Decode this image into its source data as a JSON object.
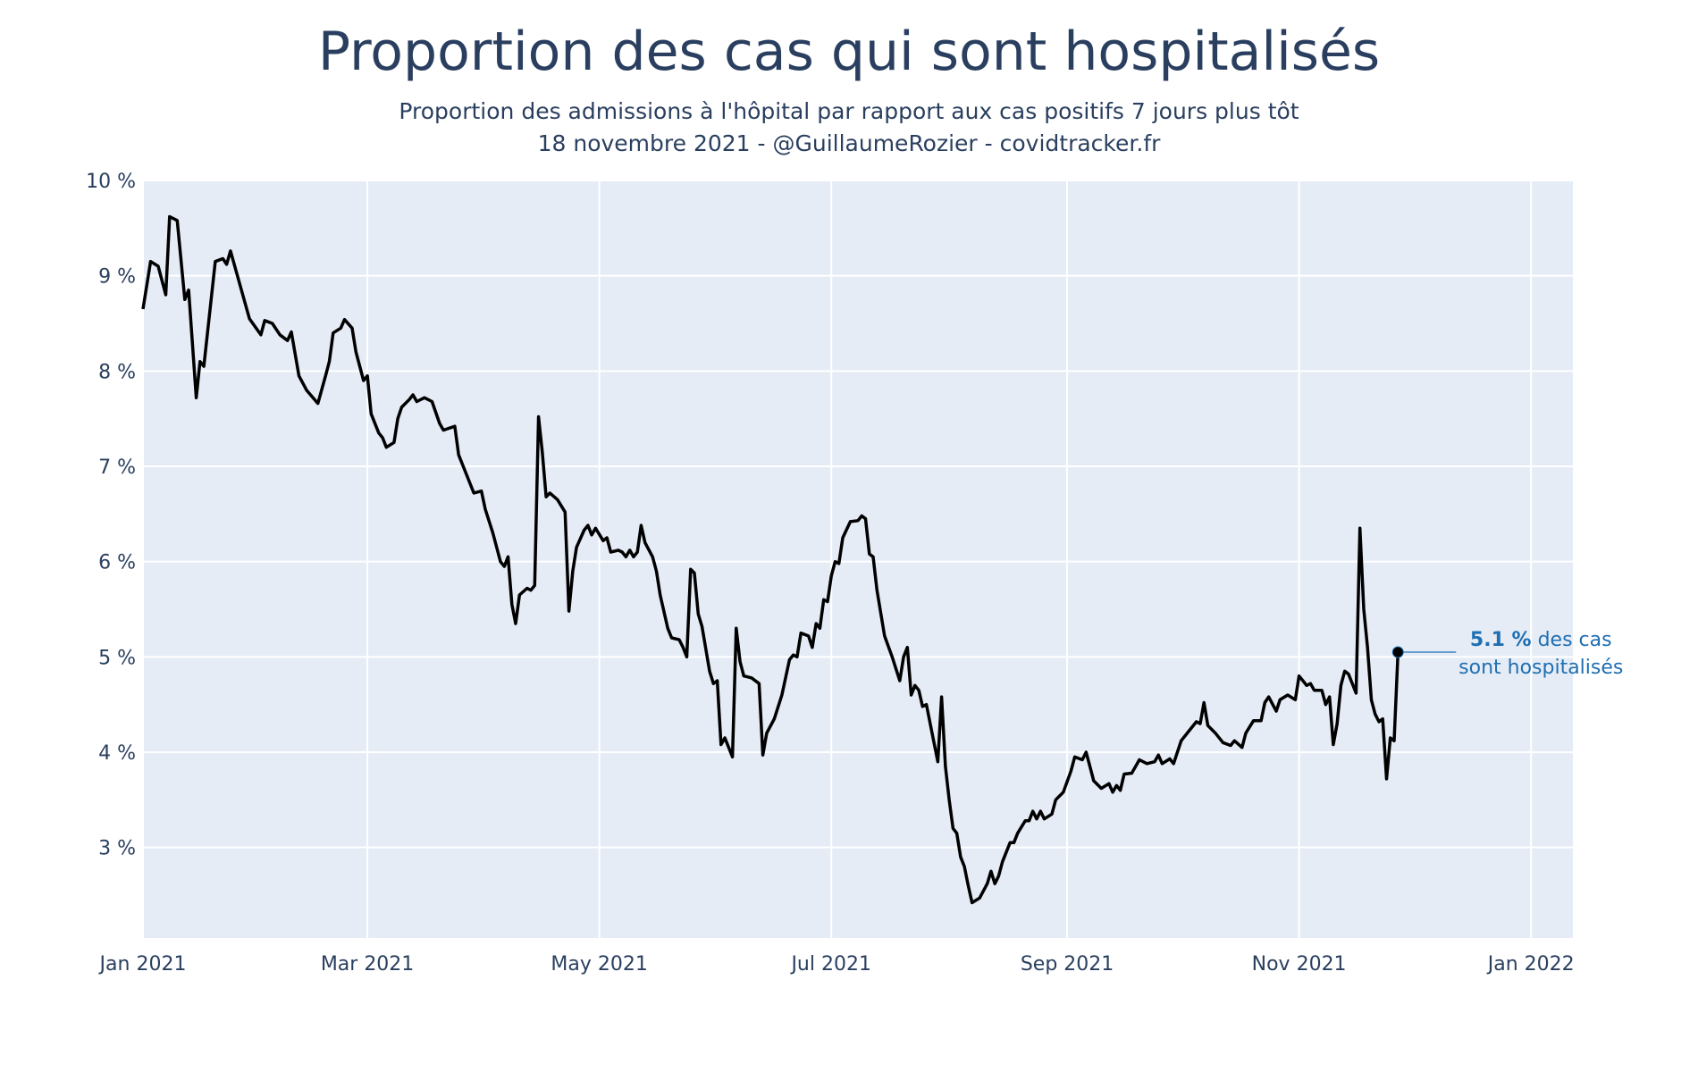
{
  "chart_data": {
    "type": "line",
    "title": "Proportion des cas qui sont hospitalisés",
    "subtitle_line1": "Proportion des admissions à l'hôpital par rapport aux cas positifs 7 jours plus tôt",
    "subtitle_line2": "18 novembre 2021 - @GuillaumeRozier - covidtracker.fr",
    "xlabel": "",
    "ylabel": "",
    "xlim": [
      "2021-01-01",
      "2022-01-12"
    ],
    "ylim": [
      2.05,
      10.0
    ],
    "grid": true,
    "y_ticks": [
      {
        "value": 3,
        "label": "3 %"
      },
      {
        "value": 4,
        "label": "4 %"
      },
      {
        "value": 5,
        "label": "5 %"
      },
      {
        "value": 6,
        "label": "6 %"
      },
      {
        "value": 7,
        "label": "7 %"
      },
      {
        "value": 8,
        "label": "8 %"
      },
      {
        "value": 9,
        "label": "9 %"
      },
      {
        "value": 10,
        "label": "10 %"
      }
    ],
    "x_ticks": [
      {
        "date": "2021-01-01",
        "label": "Jan 2021"
      },
      {
        "date": "2021-03-01",
        "label": "Mar 2021"
      },
      {
        "date": "2021-05-01",
        "label": "May 2021"
      },
      {
        "date": "2021-07-01",
        "label": "Jul 2021"
      },
      {
        "date": "2021-09-01",
        "label": "Sep 2021"
      },
      {
        "date": "2021-11-01",
        "label": "Nov 2021"
      },
      {
        "date": "2022-01-01",
        "label": "Jan 2022"
      }
    ],
    "series": [
      {
        "color": "#000000",
        "points": [
          [
            "2021-01-01",
            8.65
          ],
          [
            "2021-01-03",
            9.15
          ],
          [
            "2021-01-05",
            9.1
          ],
          [
            "2021-01-07",
            8.8
          ],
          [
            "2021-01-08",
            9.62
          ],
          [
            "2021-01-10",
            9.58
          ],
          [
            "2021-01-12",
            8.75
          ],
          [
            "2021-01-13",
            8.85
          ],
          [
            "2021-01-15",
            7.72
          ],
          [
            "2021-01-16",
            8.1
          ],
          [
            "2021-01-17",
            8.05
          ],
          [
            "2021-01-20",
            9.15
          ],
          [
            "2021-01-22",
            9.18
          ],
          [
            "2021-01-23",
            9.12
          ],
          [
            "2021-01-24",
            9.26
          ],
          [
            "2021-01-29",
            8.55
          ],
          [
            "2021-02-01",
            8.38
          ],
          [
            "2021-02-02",
            8.53
          ],
          [
            "2021-02-04",
            8.5
          ],
          [
            "2021-02-06",
            8.38
          ],
          [
            "2021-02-08",
            8.32
          ],
          [
            "2021-02-09",
            8.41
          ],
          [
            "2021-02-11",
            7.95
          ],
          [
            "2021-02-13",
            7.8
          ],
          [
            "2021-02-16",
            7.66
          ],
          [
            "2021-02-18",
            7.95
          ],
          [
            "2021-02-19",
            8.1
          ],
          [
            "2021-02-20",
            8.4
          ],
          [
            "2021-02-22",
            8.45
          ],
          [
            "2021-02-23",
            8.54
          ],
          [
            "2021-02-25",
            8.45
          ],
          [
            "2021-02-26",
            8.2
          ],
          [
            "2021-02-28",
            7.9
          ],
          [
            "2021-03-01",
            7.95
          ],
          [
            "2021-03-02",
            7.55
          ],
          [
            "2021-03-04",
            7.35
          ],
          [
            "2021-03-05",
            7.3
          ],
          [
            "2021-03-06",
            7.2
          ],
          [
            "2021-03-08",
            7.25
          ],
          [
            "2021-03-09",
            7.5
          ],
          [
            "2021-03-10",
            7.62
          ],
          [
            "2021-03-12",
            7.7
          ],
          [
            "2021-03-13",
            7.75
          ],
          [
            "2021-03-14",
            7.68
          ],
          [
            "2021-03-16",
            7.72
          ],
          [
            "2021-03-18",
            7.68
          ],
          [
            "2021-03-20",
            7.45
          ],
          [
            "2021-03-21",
            7.38
          ],
          [
            "2021-03-24",
            7.42
          ],
          [
            "2021-03-25",
            7.12
          ],
          [
            "2021-03-27",
            6.92
          ],
          [
            "2021-03-29",
            6.72
          ],
          [
            "2021-03-31",
            6.74
          ],
          [
            "2021-04-01",
            6.55
          ],
          [
            "2021-04-03",
            6.3
          ],
          [
            "2021-04-05",
            6.0
          ],
          [
            "2021-04-06",
            5.95
          ],
          [
            "2021-04-07",
            6.05
          ],
          [
            "2021-04-08",
            5.55
          ],
          [
            "2021-04-09",
            5.35
          ],
          [
            "2021-04-10",
            5.65
          ],
          [
            "2021-04-12",
            5.72
          ],
          [
            "2021-04-13",
            5.7
          ],
          [
            "2021-04-14",
            5.75
          ],
          [
            "2021-04-15",
            7.52
          ],
          [
            "2021-04-16",
            7.15
          ],
          [
            "2021-04-17",
            6.68
          ],
          [
            "2021-04-18",
            6.72
          ],
          [
            "2021-04-20",
            6.65
          ],
          [
            "2021-04-22",
            6.52
          ],
          [
            "2021-04-23",
            5.48
          ],
          [
            "2021-04-24",
            5.9
          ],
          [
            "2021-04-25",
            6.15
          ],
          [
            "2021-04-27",
            6.33
          ],
          [
            "2021-04-28",
            6.38
          ],
          [
            "2021-04-29",
            6.28
          ],
          [
            "2021-04-30",
            6.35
          ],
          [
            "2021-05-02",
            6.22
          ],
          [
            "2021-05-03",
            6.25
          ],
          [
            "2021-05-04",
            6.1
          ],
          [
            "2021-05-06",
            6.12
          ],
          [
            "2021-05-07",
            6.1
          ],
          [
            "2021-05-08",
            6.05
          ],
          [
            "2021-05-09",
            6.12
          ],
          [
            "2021-05-10",
            6.05
          ],
          [
            "2021-05-11",
            6.1
          ],
          [
            "2021-05-12",
            6.38
          ],
          [
            "2021-05-13",
            6.2
          ],
          [
            "2021-05-15",
            6.05
          ],
          [
            "2021-05-16",
            5.9
          ],
          [
            "2021-05-17",
            5.65
          ],
          [
            "2021-05-19",
            5.3
          ],
          [
            "2021-05-20",
            5.2
          ],
          [
            "2021-05-22",
            5.18
          ],
          [
            "2021-05-23",
            5.1
          ],
          [
            "2021-05-24",
            5.0
          ],
          [
            "2021-05-25",
            5.92
          ],
          [
            "2021-05-26",
            5.88
          ],
          [
            "2021-05-27",
            5.45
          ],
          [
            "2021-05-28",
            5.32
          ],
          [
            "2021-05-30",
            4.85
          ],
          [
            "2021-05-31",
            4.72
          ],
          [
            "2021-06-01",
            4.75
          ],
          [
            "2021-06-02",
            4.08
          ],
          [
            "2021-06-03",
            4.15
          ],
          [
            "2021-06-05",
            3.95
          ],
          [
            "2021-06-06",
            5.3
          ],
          [
            "2021-06-07",
            4.95
          ],
          [
            "2021-06-08",
            4.8
          ],
          [
            "2021-06-10",
            4.78
          ],
          [
            "2021-06-12",
            4.72
          ],
          [
            "2021-06-13",
            3.97
          ],
          [
            "2021-06-14",
            4.2
          ],
          [
            "2021-06-16",
            4.35
          ],
          [
            "2021-06-18",
            4.6
          ],
          [
            "2021-06-20",
            4.97
          ],
          [
            "2021-06-21",
            5.02
          ],
          [
            "2021-06-22",
            5.0
          ],
          [
            "2021-06-23",
            5.25
          ],
          [
            "2021-06-25",
            5.22
          ],
          [
            "2021-06-26",
            5.1
          ],
          [
            "2021-06-27",
            5.35
          ],
          [
            "2021-06-28",
            5.3
          ],
          [
            "2021-06-29",
            5.6
          ],
          [
            "2021-06-30",
            5.58
          ],
          [
            "2021-07-01",
            5.85
          ],
          [
            "2021-07-02",
            6.0
          ],
          [
            "2021-07-03",
            5.98
          ],
          [
            "2021-07-04",
            6.25
          ],
          [
            "2021-07-06",
            6.42
          ],
          [
            "2021-07-08",
            6.43
          ],
          [
            "2021-07-09",
            6.48
          ],
          [
            "2021-07-10",
            6.45
          ],
          [
            "2021-07-11",
            6.08
          ],
          [
            "2021-07-12",
            6.05
          ],
          [
            "2021-07-13",
            5.7
          ],
          [
            "2021-07-15",
            5.22
          ],
          [
            "2021-07-17",
            5.0
          ],
          [
            "2021-07-19",
            4.75
          ],
          [
            "2021-07-20",
            5.0
          ],
          [
            "2021-07-21",
            5.1
          ],
          [
            "2021-07-22",
            4.6
          ],
          [
            "2021-07-23",
            4.7
          ],
          [
            "2021-07-24",
            4.65
          ],
          [
            "2021-07-25",
            4.48
          ],
          [
            "2021-07-26",
            4.5
          ],
          [
            "2021-07-28",
            4.1
          ],
          [
            "2021-07-29",
            3.9
          ],
          [
            "2021-07-30",
            4.58
          ],
          [
            "2021-07-31",
            3.85
          ],
          [
            "2021-08-01",
            3.5
          ],
          [
            "2021-08-02",
            3.2
          ],
          [
            "2021-08-03",
            3.15
          ],
          [
            "2021-08-04",
            2.9
          ],
          [
            "2021-08-05",
            2.8
          ],
          [
            "2021-08-06",
            2.6
          ],
          [
            "2021-08-07",
            2.42
          ],
          [
            "2021-08-09",
            2.47
          ],
          [
            "2021-08-11",
            2.62
          ],
          [
            "2021-08-12",
            2.75
          ],
          [
            "2021-08-13",
            2.62
          ],
          [
            "2021-08-14",
            2.7
          ],
          [
            "2021-08-15",
            2.85
          ],
          [
            "2021-08-17",
            3.05
          ],
          [
            "2021-08-18",
            3.05
          ],
          [
            "2021-08-19",
            3.15
          ],
          [
            "2021-08-21",
            3.28
          ],
          [
            "2021-08-22",
            3.28
          ],
          [
            "2021-08-23",
            3.38
          ],
          [
            "2021-08-24",
            3.3
          ],
          [
            "2021-08-25",
            3.38
          ],
          [
            "2021-08-26",
            3.3
          ],
          [
            "2021-08-28",
            3.35
          ],
          [
            "2021-08-29",
            3.5
          ],
          [
            "2021-08-31",
            3.58
          ],
          [
            "2021-09-02",
            3.8
          ],
          [
            "2021-09-03",
            3.95
          ],
          [
            "2021-09-05",
            3.92
          ],
          [
            "2021-09-06",
            4.0
          ],
          [
            "2021-09-07",
            3.85
          ],
          [
            "2021-09-08",
            3.7
          ],
          [
            "2021-09-10",
            3.62
          ],
          [
            "2021-09-12",
            3.67
          ],
          [
            "2021-09-13",
            3.58
          ],
          [
            "2021-09-14",
            3.65
          ],
          [
            "2021-09-15",
            3.6
          ],
          [
            "2021-09-16",
            3.77
          ],
          [
            "2021-09-18",
            3.78
          ],
          [
            "2021-09-20",
            3.92
          ],
          [
            "2021-09-22",
            3.88
          ],
          [
            "2021-09-24",
            3.9
          ],
          [
            "2021-09-25",
            3.97
          ],
          [
            "2021-09-26",
            3.88
          ],
          [
            "2021-09-28",
            3.93
          ],
          [
            "2021-09-29",
            3.88
          ],
          [
            "2021-10-01",
            4.12
          ],
          [
            "2021-10-03",
            4.22
          ],
          [
            "2021-10-05",
            4.32
          ],
          [
            "2021-10-06",
            4.3
          ],
          [
            "2021-10-07",
            4.52
          ],
          [
            "2021-10-08",
            4.28
          ],
          [
            "2021-10-10",
            4.2
          ],
          [
            "2021-10-12",
            4.1
          ],
          [
            "2021-10-14",
            4.07
          ],
          [
            "2021-10-15",
            4.12
          ],
          [
            "2021-10-17",
            4.05
          ],
          [
            "2021-10-18",
            4.2
          ],
          [
            "2021-10-20",
            4.33
          ],
          [
            "2021-10-22",
            4.33
          ],
          [
            "2021-10-23",
            4.52
          ],
          [
            "2021-10-24",
            4.58
          ],
          [
            "2021-10-26",
            4.43
          ],
          [
            "2021-10-27",
            4.55
          ],
          [
            "2021-10-29",
            4.6
          ],
          [
            "2021-10-31",
            4.55
          ],
          [
            "2021-11-01",
            4.8
          ],
          [
            "2021-11-02",
            4.75
          ],
          [
            "2021-11-03",
            4.7
          ],
          [
            "2021-11-04",
            4.72
          ],
          [
            "2021-11-05",
            4.65
          ],
          [
            "2021-11-07",
            4.65
          ],
          [
            "2021-11-08",
            4.5
          ],
          [
            "2021-11-09",
            4.58
          ],
          [
            "2021-11-10",
            4.08
          ],
          [
            "2021-11-11",
            4.3
          ],
          [
            "2021-11-12",
            4.7
          ],
          [
            "2021-11-13",
            4.85
          ],
          [
            "2021-11-14",
            4.82
          ],
          [
            "2021-11-16",
            4.62
          ],
          [
            "2021-11-17",
            6.35
          ],
          [
            "2021-11-18",
            5.5
          ],
          [
            "2021-11-19",
            5.1
          ],
          [
            "2021-11-20",
            4.55
          ],
          [
            "2021-11-21",
            4.4
          ],
          [
            "2021-11-22",
            4.32
          ],
          [
            "2021-11-23",
            4.35
          ],
          [
            "2021-11-24",
            3.72
          ],
          [
            "2021-11-25",
            4.15
          ],
          [
            "2021-11-26",
            4.12
          ],
          [
            "2021-11-27",
            5.05
          ]
        ]
      }
    ],
    "annotation": {
      "date": "2021-11-27",
      "value": 5.05,
      "bold_text": "5.1 %",
      "text_line1_rest": " des cas",
      "text_line2": "sont hospitalisés",
      "color": "#1f6fb2"
    }
  }
}
